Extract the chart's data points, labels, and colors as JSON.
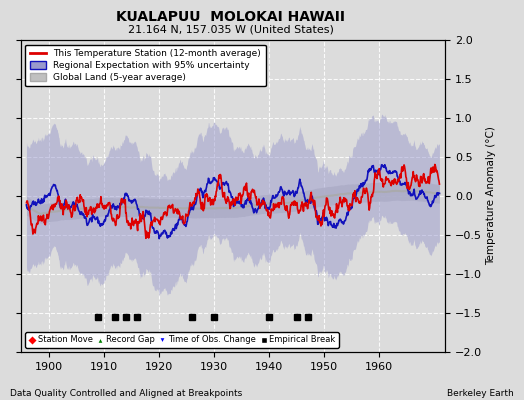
{
  "title": "KUALAPUU  MOLOKAI HAWAII",
  "subtitle": "21.164 N, 157.035 W (United States)",
  "ylabel": "Temperature Anomaly (°C)",
  "footer_left": "Data Quality Controlled and Aligned at Breakpoints",
  "footer_right": "Berkeley Earth",
  "xlim": [
    1895,
    1972
  ],
  "ylim": [
    -2.0,
    2.0
  ],
  "yticks": [
    -2,
    -1.5,
    -1,
    -0.5,
    0,
    0.5,
    1,
    1.5,
    2
  ],
  "xticks": [
    1900,
    1910,
    1920,
    1930,
    1940,
    1950,
    1960
  ],
  "bg_color": "#dcdcdc",
  "plot_bg_color": "#dcdcdc",
  "grid_color": "white",
  "station_line_color": "#dd0000",
  "regional_line_color": "#1111bb",
  "regional_fill_color": "#9999cc",
  "global_line_color": "#aaaaaa",
  "global_fill_color": "#c0c0c0",
  "empirical_break_years": [
    1909,
    1912,
    1914,
    1916,
    1926,
    1930,
    1940,
    1945,
    1947
  ],
  "seed": 42
}
